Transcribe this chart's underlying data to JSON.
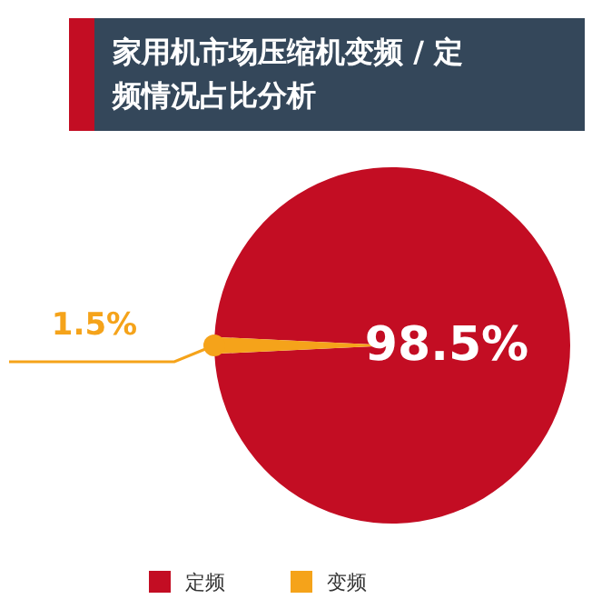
{
  "chart_data": {
    "type": "pie",
    "title": "家用机市场压缩机变频 / 定频情况占比分析",
    "categories": [
      "定频",
      "变频"
    ],
    "values": [
      98.5,
      1.5
    ],
    "colors": [
      "#c30d23",
      "#f5a31a"
    ],
    "value_labels": [
      "98.5%",
      "1.5%"
    ],
    "legend": "bottom"
  }
}
